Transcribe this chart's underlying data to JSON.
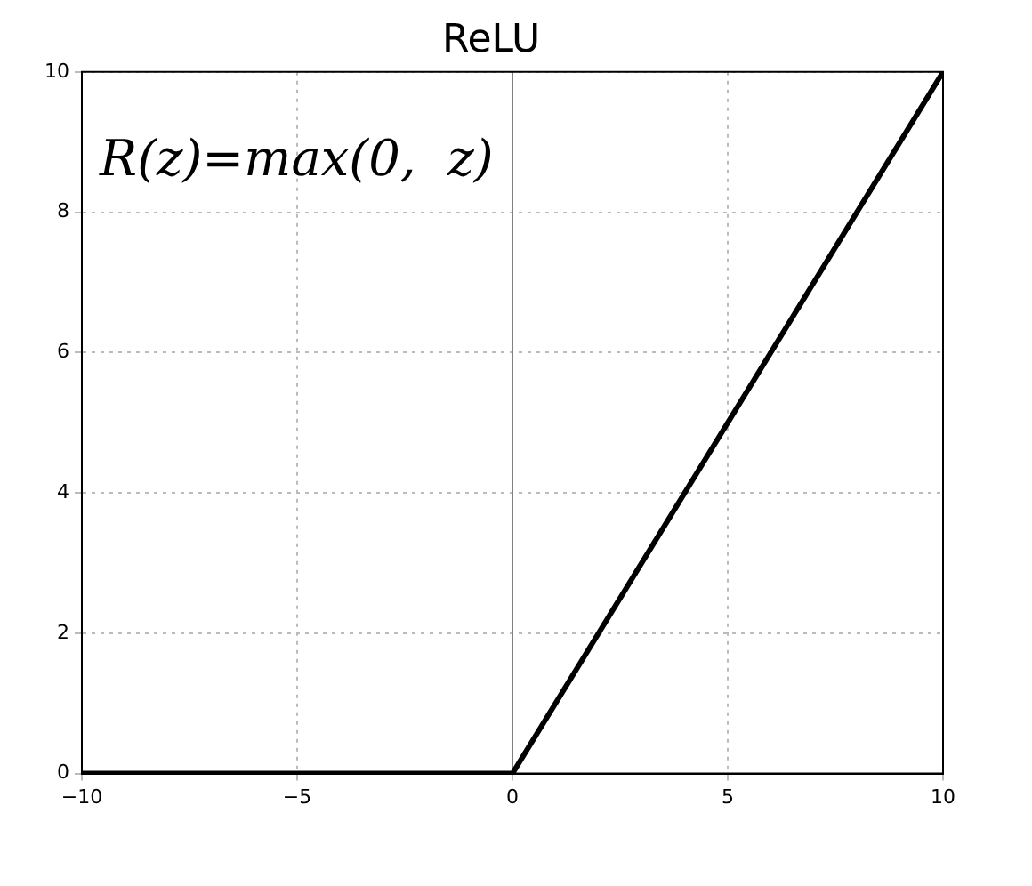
{
  "chart_data": {
    "type": "line",
    "title": "ReLU",
    "annotations": [
      "R(z)=max(0,  z)"
    ],
    "x": [
      -10,
      0,
      10
    ],
    "series": [
      {
        "color": "#000000",
        "values": [
          0,
          0,
          10
        ]
      }
    ],
    "xlim": [
      -10,
      10
    ],
    "xticks": [
      {
        "value": -10,
        "label": "−10"
      },
      {
        "value": -5,
        "label": "−5"
      },
      0,
      5,
      10
    ],
    "ylim": [
      0,
      10
    ],
    "yticks": [
      0,
      2,
      4,
      6,
      8,
      10
    ],
    "ref_lines": [
      {
        "axis": "x",
        "value": 0,
        "color": "#808080"
      }
    ],
    "grid": true,
    "legend": false,
    "marker": "none",
    "line_style": "solid"
  }
}
